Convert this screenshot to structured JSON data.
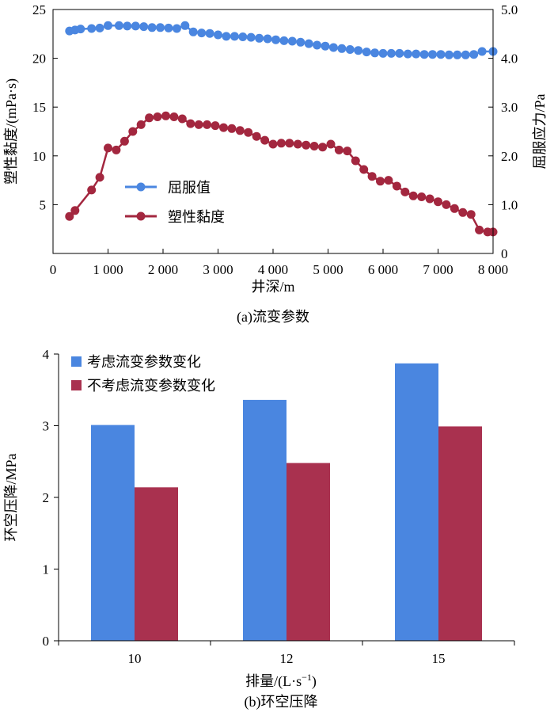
{
  "chart_data": [
    {
      "type": "line",
      "caption": "(a)流变参数",
      "xlabel": "井深/m",
      "ylabel_left": "塑性黏度/(mPa·s)",
      "ylabel_right": "屈服应力/Pa",
      "xlim": [
        0,
        8000
      ],
      "ylim_left": [
        0,
        25
      ],
      "ylim_right": [
        0,
        5.0
      ],
      "x_ticks": [
        {
          "value": 0,
          "label": "0"
        },
        {
          "value": 1000,
          "label": "1 000"
        },
        {
          "value": 2000,
          "label": "2 000"
        },
        {
          "value": 3000,
          "label": "3 000"
        },
        {
          "value": 4000,
          "label": "4 000"
        },
        {
          "value": 5000,
          "label": "5 000"
        },
        {
          "value": 6000,
          "label": "6 000"
        },
        {
          "value": 7000,
          "label": "7 000"
        },
        {
          "value": 8000,
          "label": "8 000"
        }
      ],
      "y_left_ticks": [
        {
          "value": 5,
          "label": "5"
        },
        {
          "value": 10,
          "label": "10"
        },
        {
          "value": 15,
          "label": "15"
        },
        {
          "value": 20,
          "label": "20"
        },
        {
          "value": 25,
          "label": "25"
        }
      ],
      "y_right_ticks": [
        {
          "value": 0,
          "label": "0"
        },
        {
          "value": 1.0,
          "label": "1.0"
        },
        {
          "value": 2.0,
          "label": "2.0"
        },
        {
          "value": 3.0,
          "label": "3.0"
        },
        {
          "value": 4.0,
          "label": "4.0"
        },
        {
          "value": 5.0,
          "label": "5.0"
        }
      ],
      "legend_position": "center-left",
      "grid": false,
      "series": [
        {
          "name": "屈服值",
          "axis": "right",
          "color": "#4a86e0",
          "x": [
            300,
            400,
            500,
            700,
            850,
            1000,
            1200,
            1350,
            1500,
            1650,
            1800,
            1950,
            2100,
            2250,
            2400,
            2550,
            2700,
            2850,
            3000,
            3150,
            3300,
            3450,
            3600,
            3750,
            3900,
            4050,
            4200,
            4350,
            4500,
            4650,
            4800,
            4950,
            5100,
            5250,
            5400,
            5550,
            5700,
            5850,
            6000,
            6150,
            6300,
            6450,
            6600,
            6750,
            6900,
            7050,
            7200,
            7350,
            7500,
            7650,
            7800,
            8000
          ],
          "y": [
            4.56,
            4.58,
            4.6,
            4.61,
            4.62,
            4.67,
            4.67,
            4.66,
            4.66,
            4.65,
            4.63,
            4.63,
            4.62,
            4.61,
            4.67,
            4.54,
            4.52,
            4.51,
            4.48,
            4.45,
            4.45,
            4.44,
            4.43,
            4.41,
            4.4,
            4.38,
            4.36,
            4.35,
            4.33,
            4.3,
            4.27,
            4.25,
            4.22,
            4.2,
            4.18,
            4.16,
            4.13,
            4.11,
            4.1,
            4.1,
            4.1,
            4.09,
            4.09,
            4.08,
            4.08,
            4.08,
            4.07,
            4.07,
            4.07,
            4.08,
            4.14,
            4.14
          ]
        },
        {
          "name": "塑性黏度",
          "axis": "left",
          "color": "#a3273f",
          "x": [
            300,
            400,
            700,
            850,
            1000,
            1150,
            1300,
            1450,
            1600,
            1750,
            1900,
            2050,
            2200,
            2350,
            2500,
            2650,
            2800,
            2950,
            3100,
            3250,
            3400,
            3550,
            3700,
            3850,
            4000,
            4150,
            4300,
            4450,
            4600,
            4750,
            4900,
            5050,
            5200,
            5350,
            5500,
            5650,
            5800,
            5950,
            6100,
            6250,
            6400,
            6550,
            6700,
            6850,
            7000,
            7150,
            7300,
            7450,
            7600,
            7750,
            7900,
            8000
          ],
          "y": [
            3.8,
            4.4,
            6.5,
            7.8,
            10.8,
            10.6,
            11.5,
            12.5,
            13.2,
            13.9,
            14.0,
            14.1,
            14.0,
            13.8,
            13.3,
            13.2,
            13.2,
            13.1,
            12.9,
            12.8,
            12.6,
            12.4,
            12.0,
            11.6,
            11.2,
            11.3,
            11.3,
            11.2,
            11.1,
            11.0,
            10.9,
            11.2,
            10.6,
            10.5,
            9.5,
            8.6,
            7.9,
            7.4,
            7.5,
            6.9,
            6.3,
            5.9,
            5.8,
            5.6,
            5.3,
            5.0,
            4.6,
            4.2,
            4.0,
            2.4,
            2.2,
            2.2
          ]
        }
      ]
    },
    {
      "type": "bar",
      "caption": "(b)环空压降",
      "xlabel_main": "排量/(L·s",
      "xlabel_sup": "−1",
      "xlabel_end": ")",
      "ylabel": "环空压降/MPa",
      "ylim": [
        0,
        4
      ],
      "y_ticks": [
        {
          "value": 0,
          "label": "0"
        },
        {
          "value": 1,
          "label": "1"
        },
        {
          "value": 2,
          "label": "2"
        },
        {
          "value": 3,
          "label": "3"
        },
        {
          "value": 4,
          "label": "4"
        }
      ],
      "categories": [
        "10",
        "12",
        "15"
      ],
      "legend_position": "top-left",
      "grid": false,
      "series": [
        {
          "name": "考虑流变参数变化",
          "color": "#4a86e0",
          "values": [
            3.01,
            3.36,
            3.87
          ]
        },
        {
          "name": "不考虑流变参数变化",
          "color": "#a9314f",
          "values": [
            2.14,
            2.48,
            2.99
          ]
        }
      ]
    }
  ]
}
